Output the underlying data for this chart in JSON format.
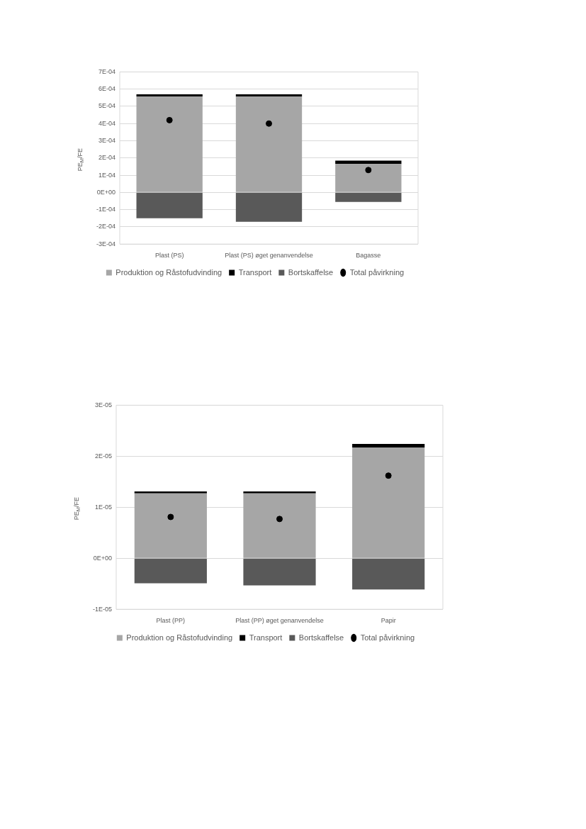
{
  "chart_data": [
    {
      "type": "bar",
      "stacked": true,
      "ylabel": "PE$_{M}$/FE",
      "categories": [
        "Plast (PS)",
        "Plast (PS) øget genanvendelse",
        "Bagasse"
      ],
      "series": [
        {
          "name": "Produktion og Råstofudvinding",
          "color": "#a6a6a6",
          "values": [
            0.000556,
            0.000556,
            0.000165
          ]
        },
        {
          "name": "Transport",
          "color": "#000000",
          "values": [
            1.4e-05,
            1.4e-05,
            2e-05
          ]
        },
        {
          "name": "Bortskaffelse",
          "color": "#595959",
          "values": [
            -0.00015,
            -0.00017,
            -5.5e-05
          ]
        },
        {
          "name": "Total påvirkning",
          "type": "scatter",
          "color": "#000000",
          "x": [
            "Plast (PS)",
            "Plast (PS) øget genanvendelse",
            "Bagasse"
          ],
          "values": [
            0.00042,
            0.0004,
            0.00013
          ]
        }
      ],
      "ylim": [
        -0.0003,
        0.0007
      ],
      "yticks": [
        {
          "value": -0.0003,
          "label": "-3E-04"
        },
        {
          "value": -0.0002,
          "label": "-2E-04"
        },
        {
          "value": -0.0001,
          "label": "-1E-04"
        },
        {
          "value": 0,
          "label": "0E+00"
        },
        {
          "value": 0.0001,
          "label": "1E-04"
        },
        {
          "value": 0.0002,
          "label": "2E-04"
        },
        {
          "value": 0.0003,
          "label": "3E-04"
        },
        {
          "value": 0.0004,
          "label": "4E-04"
        },
        {
          "value": 0.0005,
          "label": "5E-04"
        },
        {
          "value": 0.0006,
          "label": "6E-04"
        },
        {
          "value": 0.0007,
          "label": "7E-04"
        }
      ],
      "grid": "y",
      "legend": "bottom",
      "marker": "circle"
    },
    {
      "type": "bar",
      "stacked": true,
      "ylabel": "PE$_{M}$/FE",
      "categories": [
        "Plast (PP)",
        "Plast (PP) øget genanvendelse",
        "Papir"
      ],
      "series": [
        {
          "name": "Produktion og Råstofudvinding",
          "color": "#a6a6a6",
          "values": [
            1.27e-05,
            1.27e-05,
            2.17e-05
          ]
        },
        {
          "name": "Transport",
          "color": "#000000",
          "values": [
            4e-07,
            4e-07,
            7e-07
          ]
        },
        {
          "name": "Bortskaffelse",
          "color": "#595959",
          "values": [
            -4.9e-06,
            -5.3e-06,
            -6.1e-06
          ]
        },
        {
          "name": "Total påvirkning",
          "type": "scatter",
          "color": "#000000",
          "x": [
            "Plast (PP)",
            "Plast (PP) øget genanvendelse",
            "Papir"
          ],
          "values": [
            8.1e-06,
            7.7e-06,
            1.62e-05
          ]
        }
      ],
      "ylim": [
        -1e-05,
        3e-05
      ],
      "yticks": [
        {
          "value": -1e-05,
          "label": "-1E-05"
        },
        {
          "value": 0,
          "label": "0E+00"
        },
        {
          "value": 1e-05,
          "label": "1E-05"
        },
        {
          "value": 2e-05,
          "label": "2E-05"
        },
        {
          "value": 3e-05,
          "label": "3E-05"
        }
      ],
      "grid": "y",
      "legend": "bottom",
      "marker": "circle"
    }
  ]
}
